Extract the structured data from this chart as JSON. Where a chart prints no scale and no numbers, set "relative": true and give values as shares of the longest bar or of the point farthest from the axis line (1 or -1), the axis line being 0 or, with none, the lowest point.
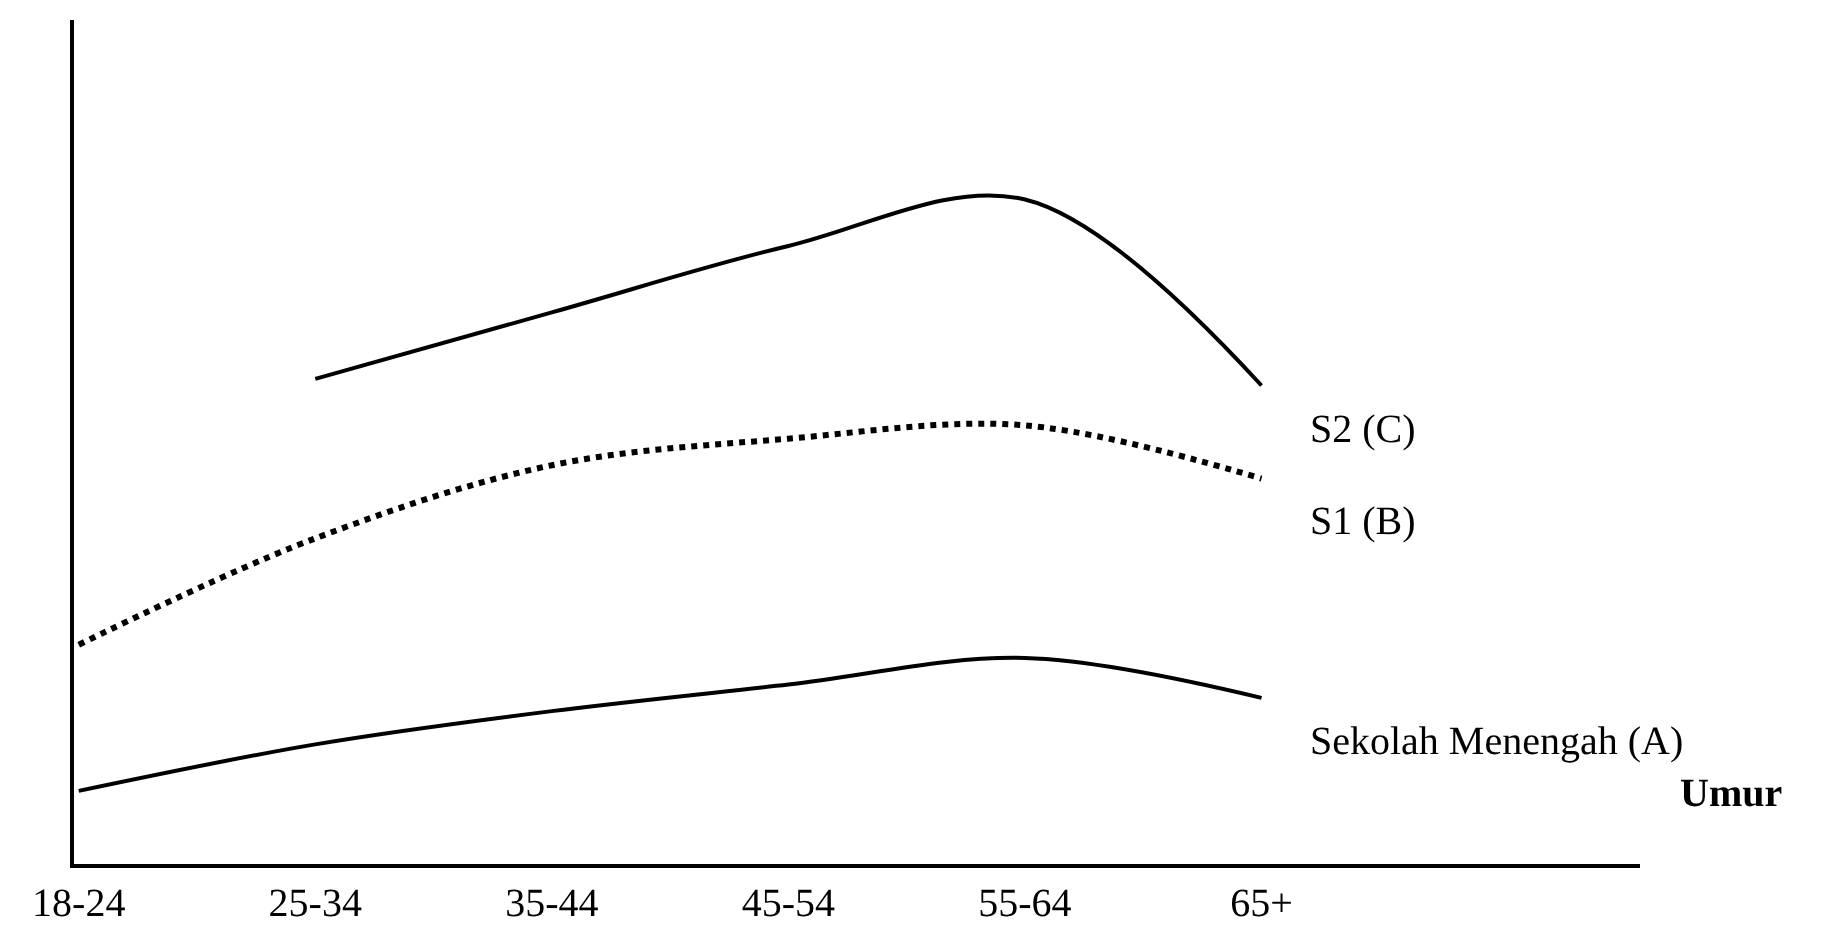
{
  "chart_data": {
    "type": "line",
    "relative": true,
    "annotations": [
      "Umur"
    ],
    "categories": [
      "18-24",
      "25-34",
      "35-44",
      "45-54",
      "55-64",
      "65+"
    ],
    "legend": false,
    "marker": "none",
    "series": [
      {
        "name": "S2 (C)",
        "color": "#000000",
        "line_style": "solid",
        "values": [
          null,
          0.73,
          0.83,
          0.93,
          1,
          0.72
        ]
      },
      {
        "name": "S1 (B)",
        "color": "#000000",
        "line_style": "dotted",
        "values": [
          0.33,
          0.49,
          0.6,
          0.64,
          0.66,
          0.58
        ]
      },
      {
        "name": "Sekolah Menengah (A)",
        "color": "#000000",
        "line_style": "solid",
        "values": [
          0.11,
          0.18,
          0.23,
          0.27,
          0.31,
          0.25
        ]
      }
    ]
  }
}
